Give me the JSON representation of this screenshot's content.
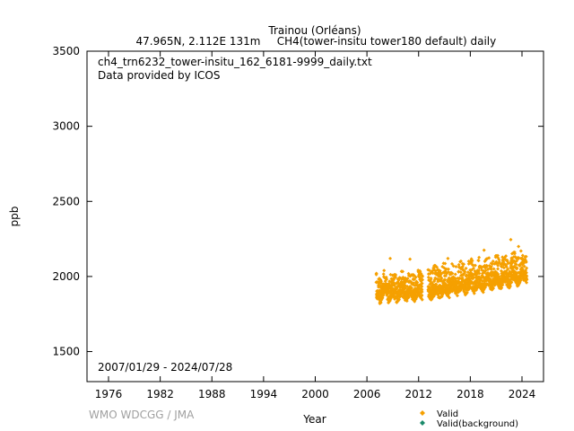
{
  "header": {
    "station": "Trainou (Orléans)",
    "location": "47.965N, 2.112E 131m",
    "series_desc": "CH4(tower-insitu tower180 default) daily"
  },
  "annotations": {
    "filename": "ch4_trn6232_tower-insitu_162_6181-9999_daily.txt",
    "provider": "Data provided by ICOS",
    "date_range": "2007/01/29 - 2024/07/28"
  },
  "credit": "WMO WDCGG / JMA",
  "colors": {
    "valid": "#f5a000",
    "background": "#1a8a6a",
    "axis": "#000000",
    "credit": "#a0a0a0"
  },
  "chart_data": {
    "type": "scatter",
    "xlabel": "Year",
    "ylabel": "ppb",
    "xlim": [
      1973.5,
      2026.5
    ],
    "ylim": [
      1300,
      3500
    ],
    "x_ticks": [
      1976,
      1982,
      1988,
      1994,
      2000,
      2006,
      2012,
      2018,
      2024
    ],
    "y_ticks": [
      1500,
      2000,
      2500,
      3000,
      3500
    ],
    "grid": false,
    "legend_position": "bottom-right",
    "series": [
      {
        "name": "Valid",
        "color": "#f5a000",
        "segments": [
          {
            "x_start": 2007.08,
            "x_end": 2012.45,
            "mean_start": 1900,
            "mean_end": 1912,
            "spread_low": 60,
            "spread_high": 120
          },
          {
            "x_start": 2013.1,
            "x_end": 2024.57,
            "mean_start": 1915,
            "mean_end": 2025,
            "spread_low": 60,
            "spread_high": 140
          }
        ],
        "extremes": [
          {
            "x": 2008.7,
            "y": 2120
          },
          {
            "x": 2011.0,
            "y": 2115
          },
          {
            "x": 2015.4,
            "y": 2120
          },
          {
            "x": 2019.6,
            "y": 2175
          },
          {
            "x": 2022.7,
            "y": 2245
          },
          {
            "x": 2023.6,
            "y": 2200
          }
        ]
      },
      {
        "name": "Valid(background)",
        "color": "#1a8a6a",
        "segments": []
      }
    ]
  }
}
